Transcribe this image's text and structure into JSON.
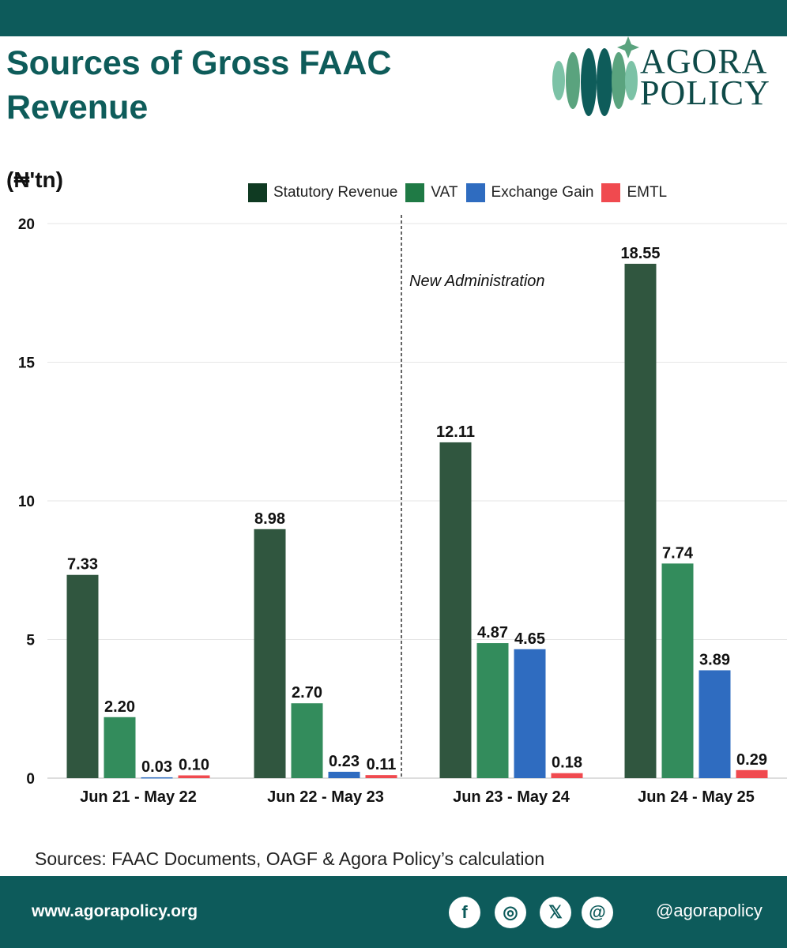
{
  "title": "Sources of Gross FAAC Revenue",
  "logo": {
    "line1": "AGORA",
    "line2": "POLICY"
  },
  "unit": "(₦'tn)",
  "chart_data": {
    "type": "bar",
    "title": "Sources of Gross FAAC Revenue",
    "ylabel": "(₦'tn)",
    "ylim": [
      0,
      20
    ],
    "yticks": [
      0,
      5,
      10,
      15,
      20
    ],
    "grid": true,
    "legend_position": "top",
    "categories": [
      "Jun 21 - May 22",
      "Jun 22 - May 23",
      "Jun 23 - May 24",
      "Jun 24 - May 25"
    ],
    "series": [
      {
        "name": "Statutory Revenue",
        "color": "#30563f",
        "values": [
          7.33,
          8.98,
          12.11,
          18.55
        ]
      },
      {
        "name": "VAT",
        "color": "#338c5c",
        "values": [
          2.2,
          2.7,
          4.87,
          7.74
        ]
      },
      {
        "name": "Exchange Gain",
        "color": "#2f6cc0",
        "values": [
          0.03,
          0.23,
          4.65,
          3.89
        ]
      },
      {
        "name": "EMTL",
        "color": "#f04a4f",
        "values": [
          0.1,
          0.11,
          0.18,
          0.29
        ]
      }
    ],
    "annotation": "New Administration",
    "legend_swatch_colors": [
      "#0f3a22",
      "#1f7a45",
      "#2f6cc0",
      "#f04a4f"
    ]
  },
  "source": "Sources: FAAC Documents, OAGF & Agora Policy’s calculation",
  "footer": {
    "url": "www.agorapolicy.org",
    "handle": "@agorapolicy",
    "social": [
      "f",
      "◎",
      "𝕏",
      "@"
    ]
  }
}
